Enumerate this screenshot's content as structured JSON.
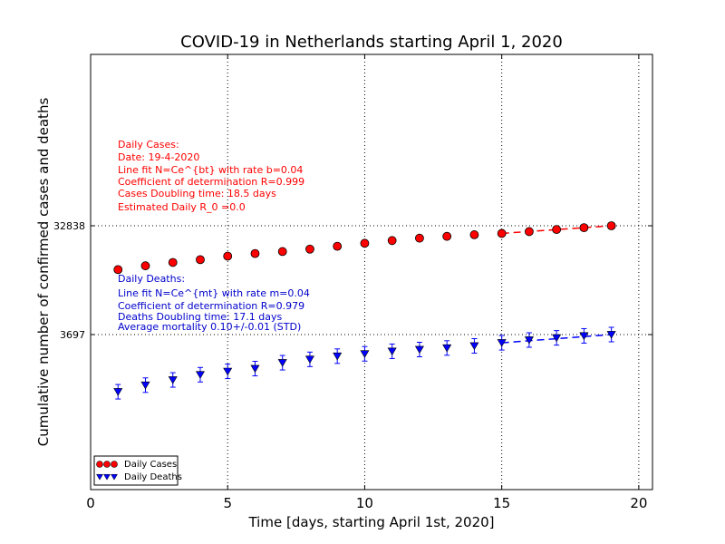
{
  "chart_data": {
    "type": "scatter",
    "title": "COVID-19 in Netherlands starting April 1, 2020",
    "xlabel": "Time [days, starting April 1st, 2020]",
    "ylabel": "Cumulative number of confirmed cases and deaths",
    "xlim": [
      0,
      20.5
    ],
    "xticks": [
      "0",
      "5",
      "10",
      "15",
      "20"
    ],
    "yscale": "log",
    "yticks": [
      "32838",
      "3697"
    ],
    "grid": true,
    "legend_placement": "lower-left",
    "series": [
      {
        "name": "Daily Cases",
        "color": "#ff0000",
        "marker": "circle",
        "x": [
          1,
          2,
          3,
          4,
          5,
          6,
          7,
          8,
          9,
          10,
          11,
          12,
          13,
          14,
          15,
          16,
          17,
          18,
          19
        ],
        "y": [
          13614,
          14697,
          15723,
          16627,
          17851,
          18803,
          19580,
          20549,
          21762,
          23097,
          24413,
          25587,
          26551,
          27419,
          28153,
          29214,
          30449,
          31589,
          32838
        ],
        "fit": {
          "x_start": 15,
          "x_end": 19,
          "y_start": 28153,
          "y_end": 32838
        }
      },
      {
        "name": "Daily Deaths",
        "color": "#0000ff",
        "marker": "triangle-down",
        "x": [
          1,
          2,
          3,
          4,
          5,
          6,
          7,
          8,
          9,
          10,
          11,
          12,
          13,
          14,
          15,
          16,
          17,
          18,
          19
        ],
        "y": [
          1173,
          1339,
          1487,
          1651,
          1766,
          1867,
          2101,
          2248,
          2396,
          2511,
          2643,
          2737,
          2823,
          2945,
          3134,
          3315,
          3459,
          3601,
          3697
        ],
        "fit": {
          "x_start": 15,
          "x_end": 19,
          "y_start": 3134,
          "y_end": 3697
        }
      }
    ],
    "annotations": {
      "cases": {
        "color": "#ff0000",
        "lines": [
          "Daily Cases:",
          "Date: 19-4-2020",
          "Line fit N=Ce^{bt} with rate b=0.04",
          "Coefficient of determination R=0.999",
          "Cases Doubling time: 18.5 days",
          "Estimated Daily R_0 =0.0"
        ]
      },
      "deaths": {
        "color": "#0000cc",
        "lines": [
          "Daily Deaths:",
          "Line fit N=Ce^{mt} with rate m=0.04",
          "Coefficient of determination R=0.979",
          "Deaths Doubling time: 17.1 days",
          "Average mortality 0.10+/-0.01 (STD)"
        ]
      }
    }
  }
}
